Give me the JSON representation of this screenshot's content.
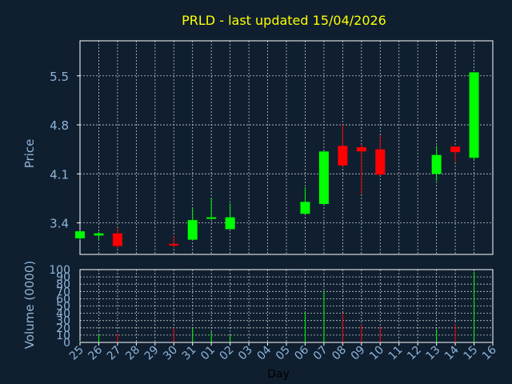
{
  "chart_data": [
    {
      "type": "candlestick",
      "title": "PRLD - last updated 15/04/2026",
      "ylabel": "Price",
      "ylim": [
        2.95,
        6.0
      ],
      "yticks": [
        "3.4",
        "4.1",
        "4.8",
        "5.5"
      ],
      "grid": true,
      "categories": [
        "25",
        "26",
        "27",
        "28",
        "29",
        "30",
        "31",
        "01",
        "02",
        "03",
        "04",
        "05",
        "06",
        "07",
        "08",
        "09",
        "10",
        "11",
        "12",
        "13",
        "14",
        "15",
        "16"
      ],
      "candles": [
        {
          "day": "25",
          "open": 3.18,
          "high": 3.29,
          "low": 3.16,
          "close": 3.28
        },
        {
          "day": "26",
          "open": 3.22,
          "high": 3.27,
          "low": 3.16,
          "close": 3.25
        },
        {
          "day": "27",
          "open": 3.25,
          "high": 3.33,
          "low": 3.04,
          "close": 3.07
        },
        {
          "day": "30",
          "open": 3.1,
          "high": 3.22,
          "low": 3.05,
          "close": 3.08
        },
        {
          "day": "31",
          "open": 3.16,
          "high": 3.61,
          "low": 3.16,
          "close": 3.44
        },
        {
          "day": "01",
          "open": 3.46,
          "high": 3.76,
          "low": 3.45,
          "close": 3.48
        },
        {
          "day": "02",
          "open": 3.31,
          "high": 3.68,
          "low": 3.31,
          "close": 3.48
        },
        {
          "day": "06",
          "open": 3.53,
          "high": 3.91,
          "low": 3.53,
          "close": 3.7
        },
        {
          "day": "07",
          "open": 3.67,
          "high": 4.42,
          "low": 3.67,
          "close": 4.42
        },
        {
          "day": "08",
          "open": 4.5,
          "high": 4.8,
          "low": 4.2,
          "close": 4.22
        },
        {
          "day": "09",
          "open": 4.48,
          "high": 4.52,
          "low": 3.81,
          "close": 4.42
        },
        {
          "day": "10",
          "open": 4.45,
          "high": 4.65,
          "low": 4.08,
          "close": 4.09
        },
        {
          "day": "13",
          "open": 4.1,
          "high": 4.5,
          "low": 4.0,
          "close": 4.37
        },
        {
          "day": "14",
          "open": 4.49,
          "high": 4.49,
          "low": 4.27,
          "close": 4.41
        },
        {
          "day": "15",
          "open": 4.33,
          "high": 5.55,
          "low": 4.3,
          "close": 5.55
        }
      ],
      "bull_color": "#00ff00",
      "bear_color": "#ff0000"
    },
    {
      "type": "bar",
      "ylabel": "Volume (0000)",
      "ylim": [
        0,
        100
      ],
      "yticks": [
        "0",
        "10",
        "20",
        "30",
        "40",
        "50",
        "60",
        "70",
        "80",
        "90",
        "100"
      ],
      "xlabel": "Day",
      "categories": [
        "25",
        "26",
        "27",
        "28",
        "29",
        "30",
        "31",
        "01",
        "02",
        "03",
        "04",
        "05",
        "06",
        "07",
        "08",
        "09",
        "10",
        "11",
        "12",
        "13",
        "14",
        "15",
        "16"
      ],
      "volumes": [
        {
          "day": "25",
          "value": 2,
          "dir": "up"
        },
        {
          "day": "26",
          "value": 12,
          "dir": "up"
        },
        {
          "day": "27",
          "value": 12,
          "dir": "down"
        },
        {
          "day": "30",
          "value": 20,
          "dir": "down"
        },
        {
          "day": "31",
          "value": 20,
          "dir": "up"
        },
        {
          "day": "01",
          "value": 15,
          "dir": "up"
        },
        {
          "day": "02",
          "value": 10,
          "dir": "up"
        },
        {
          "day": "06",
          "value": 41,
          "dir": "up"
        },
        {
          "day": "07",
          "value": 70,
          "dir": "up"
        },
        {
          "day": "08",
          "value": 40,
          "dir": "down"
        },
        {
          "day": "09",
          "value": 25,
          "dir": "down"
        },
        {
          "day": "10",
          "value": 22,
          "dir": "down"
        },
        {
          "day": "13",
          "value": 18,
          "dir": "up"
        },
        {
          "day": "14",
          "value": 25,
          "dir": "down"
        },
        {
          "day": "15",
          "value": 97,
          "dir": "up"
        }
      ]
    }
  ],
  "colors": {
    "background": "#0f1f30",
    "title": "#ffff00",
    "axis_text": "#8fb4d8",
    "grid": "#c8c8c8",
    "axis_line": "#ffffff"
  }
}
